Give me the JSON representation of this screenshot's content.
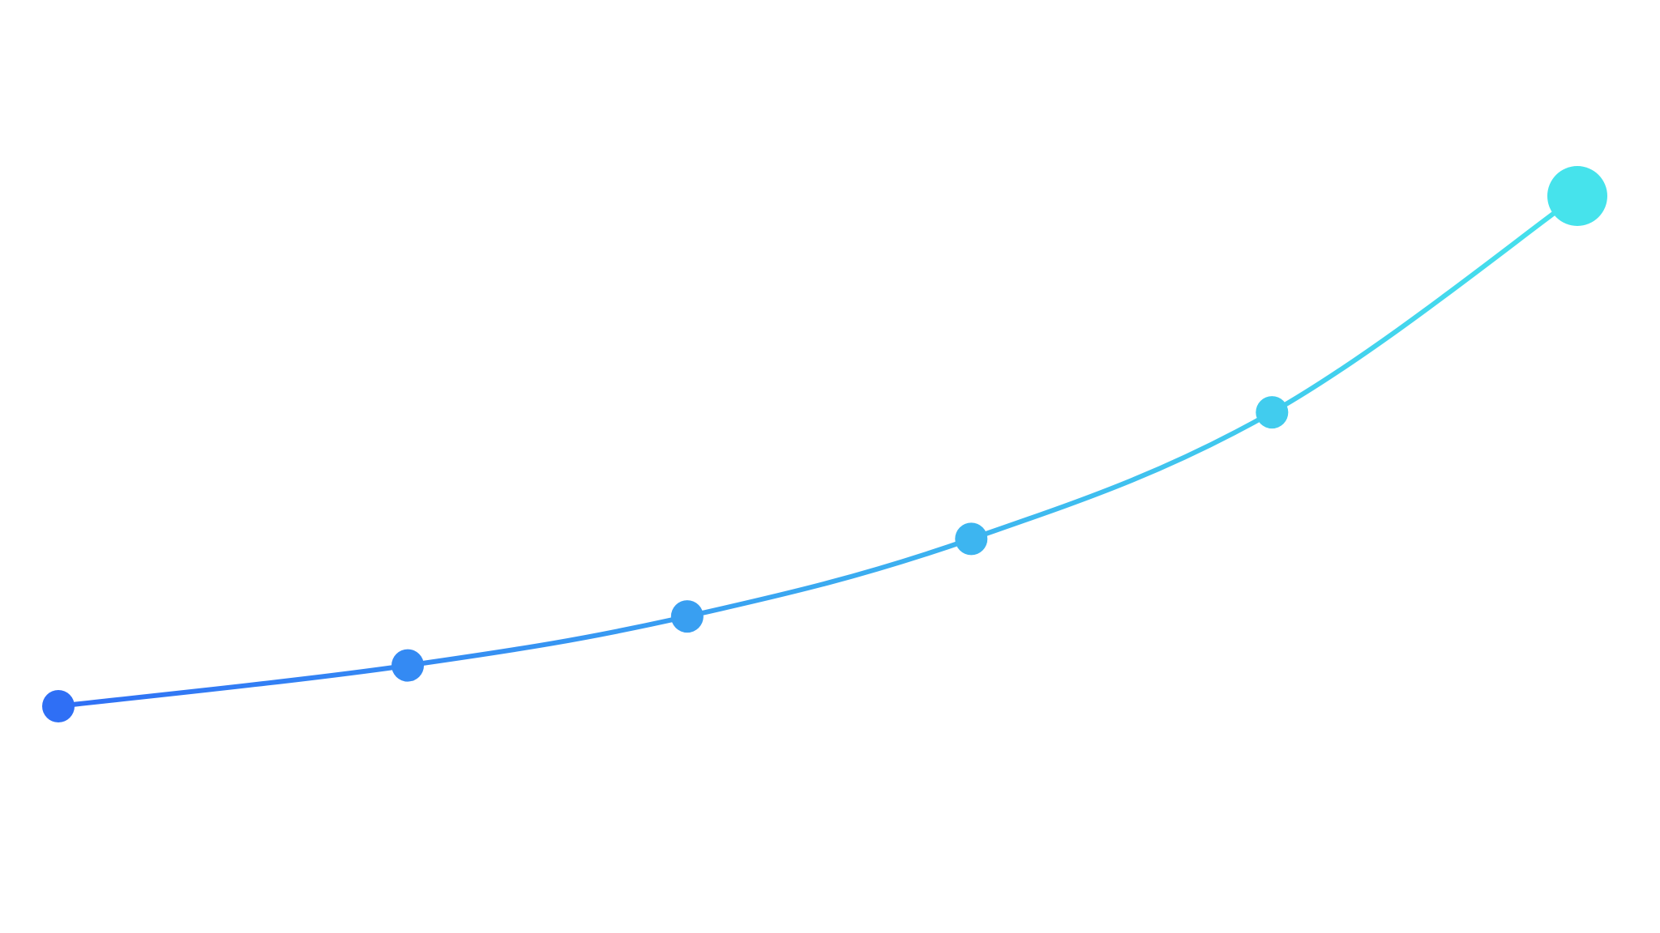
{
  "chart_data": {
    "type": "line",
    "curve": "smooth",
    "x": [
      1,
      2,
      3,
      4,
      5,
      6
    ],
    "series": [
      {
        "values": [
          0.0,
          0.1,
          0.22,
          0.41,
          0.72,
          1.25
        ]
      }
    ],
    "axes_visible": false,
    "grid": false,
    "legend": "none",
    "last_point_emphasized": true,
    "colors": {
      "gradient_start": "#2f6ff5",
      "gradient_end": "#46e3ec",
      "background": "#ffffff"
    }
  }
}
